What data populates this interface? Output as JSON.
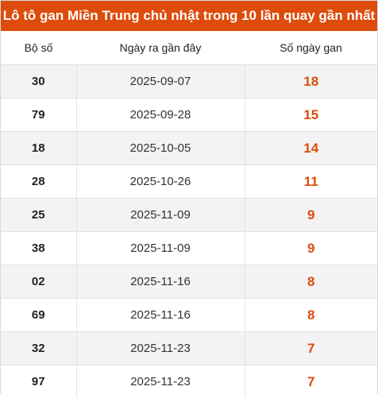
{
  "title": "Lô tô gan Miền Trung chủ nhật trong 10 lần quay gần nhất",
  "headers": {
    "number": "Bộ số",
    "date": "Ngày ra gần đây",
    "days": "Số ngày gan"
  },
  "rows": [
    {
      "number": "30",
      "date": "2025-09-07",
      "days": "18"
    },
    {
      "number": "79",
      "date": "2025-09-28",
      "days": "15"
    },
    {
      "number": "18",
      "date": "2025-10-05",
      "days": "14"
    },
    {
      "number": "28",
      "date": "2025-10-26",
      "days": "11"
    },
    {
      "number": "25",
      "date": "2025-11-09",
      "days": "9"
    },
    {
      "number": "38",
      "date": "2025-11-09",
      "days": "9"
    },
    {
      "number": "02",
      "date": "2025-11-16",
      "days": "8"
    },
    {
      "number": "69",
      "date": "2025-11-16",
      "days": "8"
    },
    {
      "number": "32",
      "date": "2025-11-23",
      "days": "7"
    },
    {
      "number": "97",
      "date": "2025-11-23",
      "days": "7"
    }
  ],
  "colors": {
    "title_bg": "#dd4c0c",
    "highlight": "#dd4c0c"
  }
}
